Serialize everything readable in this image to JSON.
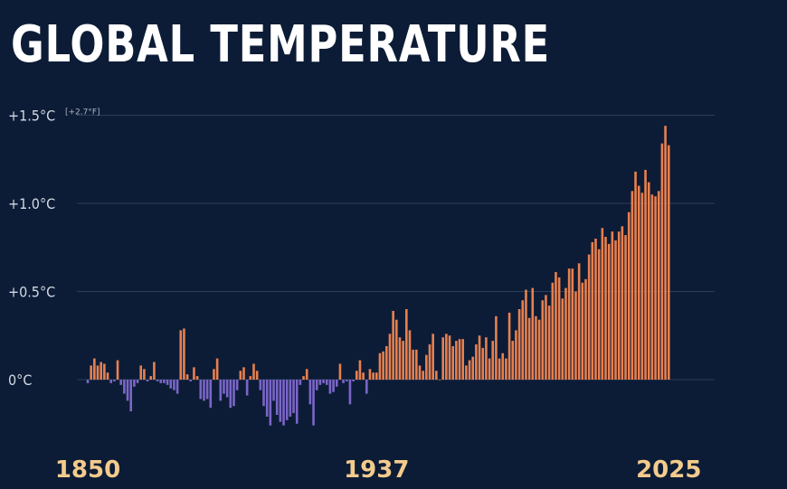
{
  "title": "GLOBAL TEMPERATURE",
  "chart_data": {
    "type": "bar",
    "title": "GLOBAL TEMPERATURE",
    "ylim": [
      -0.3,
      1.5
    ],
    "y_ticks": [
      {
        "value": 1.5,
        "label": "+1.5°C",
        "note": "[+2.7°F]"
      },
      {
        "value": 1.0,
        "label": "+1.0°C"
      },
      {
        "value": 0.5,
        "label": "+0.5°C"
      },
      {
        "value": 0.0,
        "label": "0°C"
      }
    ],
    "x_ticks": [
      {
        "value": 1850,
        "label": "1850"
      },
      {
        "value": 1937,
        "label": "1937"
      },
      {
        "value": 2025,
        "label": "2025"
      }
    ],
    "colors": {
      "positive": "#e8804f",
      "negative": "#7b66c8",
      "grid": "#2b3d5a",
      "x_label": "#f3cb8c"
    },
    "grid": true,
    "x": [
      1850,
      1851,
      1852,
      1853,
      1854,
      1855,
      1856,
      1857,
      1858,
      1859,
      1860,
      1861,
      1862,
      1863,
      1864,
      1865,
      1866,
      1867,
      1868,
      1869,
      1870,
      1871,
      1872,
      1873,
      1874,
      1875,
      1876,
      1877,
      1878,
      1879,
      1880,
      1881,
      1882,
      1883,
      1884,
      1885,
      1886,
      1887,
      1888,
      1889,
      1890,
      1891,
      1892,
      1893,
      1894,
      1895,
      1896,
      1897,
      1898,
      1899,
      1900,
      1901,
      1902,
      1903,
      1904,
      1905,
      1906,
      1907,
      1908,
      1909,
      1910,
      1911,
      1912,
      1913,
      1914,
      1915,
      1916,
      1917,
      1918,
      1919,
      1920,
      1921,
      1922,
      1923,
      1924,
      1925,
      1926,
      1927,
      1928,
      1929,
      1930,
      1931,
      1932,
      1933,
      1934,
      1935,
      1936,
      1937,
      1938,
      1939,
      1940,
      1941,
      1942,
      1943,
      1944,
      1945,
      1946,
      1947,
      1948,
      1949,
      1950,
      1951,
      1952,
      1953,
      1954,
      1955,
      1956,
      1957,
      1958,
      1959,
      1960,
      1961,
      1962,
      1963,
      1964,
      1965,
      1966,
      1967,
      1968,
      1969,
      1970,
      1971,
      1972,
      1973,
      1974,
      1975,
      1976,
      1977,
      1978,
      1979,
      1980,
      1981,
      1982,
      1983,
      1984,
      1985,
      1986,
      1987,
      1988,
      1989,
      1990,
      1991,
      1992,
      1993,
      1994,
      1995,
      1996,
      1997,
      1998,
      1999,
      2000,
      2001,
      2002,
      2003,
      2004,
      2005,
      2006,
      2007,
      2008,
      2009,
      2010,
      2011,
      2012,
      2013,
      2014,
      2015,
      2016,
      2017,
      2018,
      2019,
      2020,
      2021,
      2022,
      2023,
      2024,
      2025
    ],
    "values": [
      -0.02,
      0.08,
      0.12,
      0.08,
      0.1,
      0.09,
      0.04,
      -0.02,
      -0.01,
      0.11,
      -0.03,
      -0.08,
      -0.12,
      -0.18,
      -0.04,
      -0.02,
      0.08,
      0.06,
      -0.01,
      0.02,
      0.1,
      -0.01,
      -0.02,
      -0.02,
      -0.03,
      -0.05,
      -0.06,
      -0.08,
      0.28,
      0.29,
      0.03,
      -0.01,
      0.07,
      0.02,
      -0.11,
      -0.12,
      -0.11,
      -0.16,
      0.06,
      0.12,
      -0.12,
      -0.08,
      -0.1,
      -0.16,
      -0.15,
      -0.06,
      0.05,
      0.07,
      -0.09,
      0.02,
      0.09,
      0.05,
      -0.06,
      -0.15,
      -0.21,
      -0.26,
      -0.12,
      -0.2,
      -0.24,
      -0.26,
      -0.23,
      -0.21,
      -0.19,
      -0.25,
      -0.03,
      0.02,
      0.06,
      -0.14,
      -0.26,
      -0.06,
      -0.03,
      -0.02,
      -0.03,
      -0.08,
      -0.07,
      -0.04,
      0.09,
      -0.02,
      -0.01,
      -0.14,
      -0.01,
      0.05,
      0.11,
      0.04,
      -0.08,
      0.06,
      0.04,
      0.04,
      0.15,
      0.16,
      0.19,
      0.26,
      0.39,
      0.34,
      0.24,
      0.22,
      0.4,
      0.28,
      0.17,
      0.17,
      0.08,
      0.05,
      0.14,
      0.2,
      0.26,
      0.05,
      0.0,
      0.24,
      0.26,
      0.25,
      0.19,
      0.22,
      0.23,
      0.23,
      0.08,
      0.11,
      0.13,
      0.2,
      0.25,
      0.18,
      0.24,
      0.12,
      0.22,
      0.36,
      0.12,
      0.15,
      0.12,
      0.38,
      0.22,
      0.28,
      0.4,
      0.45,
      0.51,
      0.35,
      0.52,
      0.36,
      0.34,
      0.45,
      0.48,
      0.42,
      0.55,
      0.61,
      0.58,
      0.46,
      0.52,
      0.63,
      0.63,
      0.5,
      0.66,
      0.55,
      0.57,
      0.71,
      0.78,
      0.8,
      0.74,
      0.86,
      0.81,
      0.77,
      0.84,
      0.79,
      0.84,
      0.87,
      0.82,
      0.95,
      1.07,
      1.18,
      1.1,
      1.06,
      1.19,
      1.12,
      1.05,
      1.04,
      1.07,
      1.34,
      1.44,
      1.33
    ]
  }
}
